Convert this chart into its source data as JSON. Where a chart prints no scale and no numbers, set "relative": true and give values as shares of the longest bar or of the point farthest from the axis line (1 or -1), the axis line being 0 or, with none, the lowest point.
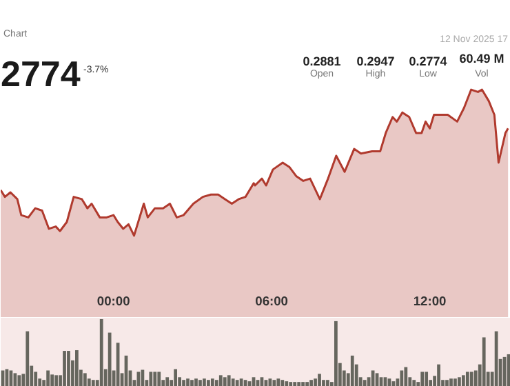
{
  "chart_data": [
    {
      "type": "area",
      "relative": true,
      "color": "#b03a2e",
      "annotations": [
        "Chart",
        "2774",
        "-3.7%",
        "0.2881",
        "Open",
        "0.2947",
        "High",
        "0.2774",
        "Low",
        "60.49 M",
        "Vol",
        "12 Nov 2025 17"
      ],
      "xlim": [
        -4.28,
        15.07
      ],
      "xticks": [
        {
          "value": 0,
          "label": "00:00"
        },
        {
          "value": 6,
          "label": "06:00"
        },
        {
          "value": 12,
          "label": "12:00"
        }
      ],
      "x": [
        -4.28,
        -4.12,
        -3.91,
        -3.65,
        -3.5,
        -3.23,
        -2.97,
        -2.71,
        -2.45,
        -2.19,
        -2.03,
        -1.77,
        -1.51,
        -1.2,
        -0.99,
        -0.83,
        -0.52,
        -0.26,
        0,
        0.16,
        0.37,
        0.57,
        0.78,
        1.15,
        1.3,
        1.57,
        1.88,
        2.14,
        2.4,
        2.66,
        3.03,
        3.39,
        3.7,
        3.97,
        4.23,
        4.49,
        4.75,
        5.01,
        5.32,
        5.37,
        5.63,
        5.79,
        6.05,
        6.42,
        6.68,
        6.94,
        7.2,
        7.46,
        7.83,
        8.14,
        8.45,
        8.77,
        9.13,
        9.39,
        9.81,
        10.12,
        10.33,
        10.59,
        10.75,
        10.96,
        11.22,
        11.48,
        11.69,
        11.84,
        12.0,
        12.16,
        12.68,
        13.04,
        13.3,
        13.57,
        13.83,
        13.98,
        14.24,
        14.45,
        14.61,
        14.87,
        14.97
      ],
      "values": [
        0.56,
        0.53,
        0.55,
        0.52,
        0.45,
        0.44,
        0.48,
        0.47,
        0.39,
        0.4,
        0.38,
        0.42,
        0.53,
        0.52,
        0.48,
        0.5,
        0.44,
        0.44,
        0.45,
        0.42,
        0.39,
        0.41,
        0.36,
        0.5,
        0.44,
        0.48,
        0.48,
        0.5,
        0.44,
        0.45,
        0.5,
        0.53,
        0.54,
        0.54,
        0.52,
        0.5,
        0.52,
        0.53,
        0.59,
        0.58,
        0.61,
        0.58,
        0.65,
        0.68,
        0.66,
        0.62,
        0.6,
        0.61,
        0.52,
        0.61,
        0.71,
        0.64,
        0.74,
        0.72,
        0.73,
        0.73,
        0.81,
        0.88,
        0.86,
        0.9,
        0.88,
        0.81,
        0.81,
        0.86,
        0.83,
        0.89,
        0.89,
        0.86,
        0.92,
        1,
        0.99,
        1,
        0.95,
        0.89,
        0.68,
        0.81,
        0.83
      ]
    },
    {
      "type": "bar",
      "relative": true,
      "color": "#66665e",
      "categories": [
        null,
        null,
        null,
        null,
        null,
        null,
        null,
        null,
        null,
        null,
        null,
        null,
        null,
        null,
        null,
        null,
        null,
        null,
        null,
        null,
        null,
        null,
        null,
        null,
        null,
        null,
        null,
        null,
        null,
        null,
        null,
        null,
        null,
        null,
        null,
        null,
        null,
        null,
        null,
        null,
        null,
        null,
        null,
        null,
        null,
        null,
        null,
        null,
        null,
        null,
        null,
        null,
        null,
        null,
        null,
        null,
        null,
        null,
        null,
        null,
        null,
        null,
        null,
        null,
        null,
        null,
        null,
        null,
        null,
        null,
        null,
        null,
        null,
        null,
        null,
        null,
        null,
        null,
        null,
        null,
        null,
        null,
        null,
        null,
        null,
        null,
        null,
        null,
        null,
        null,
        null,
        null,
        null,
        null,
        null,
        null,
        null,
        null,
        null,
        null,
        null,
        null,
        null,
        null,
        null,
        null,
        null,
        null,
        null,
        null,
        null,
        null,
        null,
        null,
        null,
        null,
        null,
        null,
        null,
        null,
        null,
        null,
        null,
        null
      ],
      "values": [
        0.24,
        0.26,
        0.24,
        0.2,
        0.17,
        0.19,
        0.82,
        0.31,
        0.22,
        0.12,
        0.1,
        0.24,
        0.18,
        0.17,
        0.17,
        0.53,
        0.53,
        0.39,
        0.54,
        0.25,
        0.2,
        0.12,
        0.1,
        0.1,
        1,
        0.26,
        0.8,
        0.24,
        0.65,
        0.2,
        0.46,
        0.24,
        0.1,
        0.22,
        0.25,
        0.1,
        0.22,
        0.22,
        0.22,
        0.1,
        0.14,
        0.1,
        0.26,
        0.14,
        0.1,
        0.12,
        0.1,
        0.12,
        0.1,
        0.12,
        0.1,
        0.12,
        0.1,
        0.17,
        0.14,
        0.17,
        0.12,
        0.1,
        0.12,
        0.1,
        0.08,
        0.14,
        0.1,
        0.14,
        0.1,
        0.12,
        0.1,
        0.12,
        0.1,
        0.08,
        0.07,
        0.07,
        0.07,
        0.07,
        0.07,
        0.1,
        0.12,
        0.19,
        0.1,
        0.1,
        0.07,
        0.97,
        0.35,
        0.24,
        0.2,
        0.46,
        0.33,
        0.14,
        0.1,
        0.14,
        0.24,
        0.2,
        0.14,
        0.14,
        0.12,
        0.08,
        0.12,
        0.24,
        0.29,
        0.14,
        0.1,
        0.07,
        0.22,
        0.22,
        0.1,
        0.16,
        0.33,
        0.1,
        0.1,
        0.12,
        0.12,
        0.14,
        0.17,
        0.22,
        0.22,
        0.24,
        0.33,
        0.73,
        0.22,
        0.22,
        0.82,
        0.41,
        0.44,
        0.48
      ]
    }
  ]
}
